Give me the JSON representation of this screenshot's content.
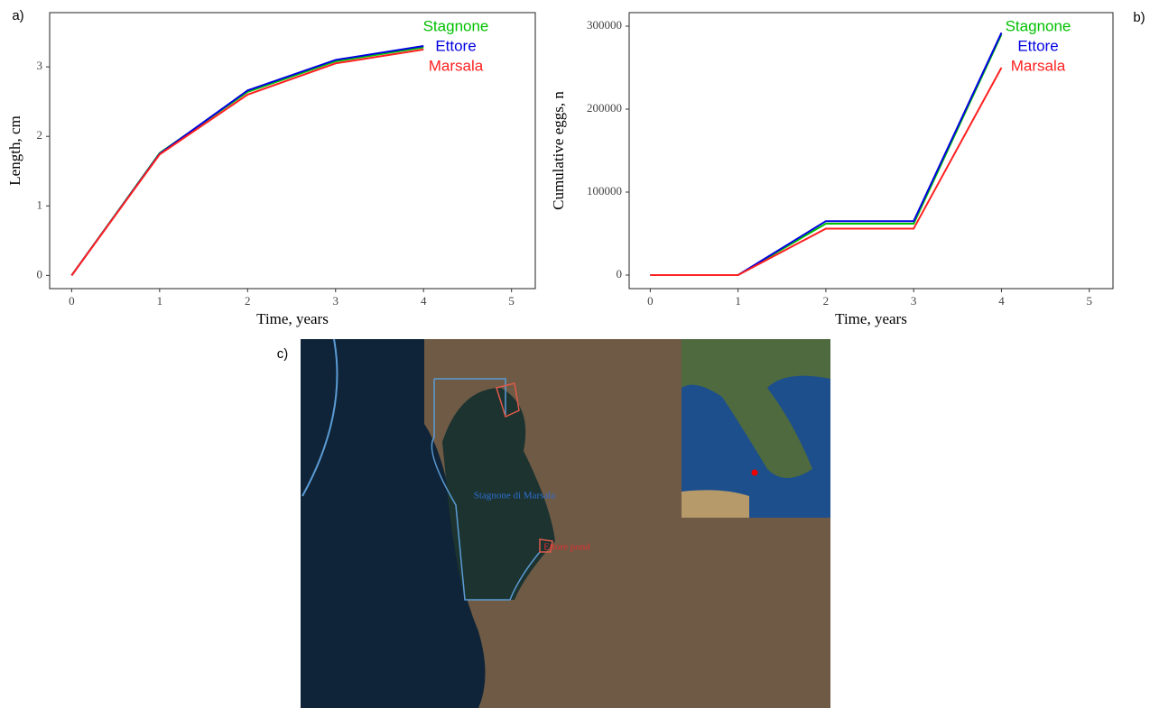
{
  "chart_data": [
    {
      "type": "line",
      "panel_label": "a)",
      "x_label": "Time, years",
      "y_label": "Length, cm",
      "x": [
        0,
        1,
        2,
        3,
        4
      ],
      "xlim": [
        -0.25,
        5.27
      ],
      "xticks": [
        0,
        1,
        2,
        3,
        4,
        5
      ],
      "ylim": [
        -0.19,
        3.78
      ],
      "yticks": [
        0,
        1,
        2,
        3
      ],
      "grid": false,
      "series": [
        {
          "name": "Stagnone",
          "color": "#00c000",
          "values": [
            0,
            1.76,
            2.64,
            3.08,
            3.28
          ]
        },
        {
          "name": "Ettore",
          "color": "#0000e0",
          "values": [
            0,
            1.75,
            2.66,
            3.1,
            3.3
          ]
        },
        {
          "name": "Marsala",
          "color": "#ff2020",
          "values": [
            0,
            1.74,
            2.6,
            3.05,
            3.25
          ]
        }
      ]
    },
    {
      "type": "line",
      "panel_label": "b)",
      "x_label": "Time, years",
      "y_label": "Cumulative eggs, n",
      "x": [
        0,
        1,
        2,
        3,
        4
      ],
      "xlim": [
        -0.24,
        5.27
      ],
      "xticks": [
        0,
        1,
        2,
        3,
        4,
        5
      ],
      "ylim": [
        -16300,
        316300
      ],
      "yticks": [
        0,
        100000,
        200000,
        300000
      ],
      "grid": false,
      "series": [
        {
          "name": "Stagnone",
          "color": "#00c000",
          "values": [
            0,
            0,
            62000,
            62000,
            290000
          ]
        },
        {
          "name": "Ettore",
          "color": "#0000e0",
          "values": [
            0,
            0,
            65000,
            65000,
            292000
          ]
        },
        {
          "name": "Marsala",
          "color": "#ff2020",
          "values": [
            0,
            0,
            56000,
            56000,
            250000
          ]
        }
      ]
    }
  ],
  "map": {
    "panel_label": "c)",
    "labels": [
      "Stagnone di Marsala",
      "Ettore pond"
    ]
  }
}
